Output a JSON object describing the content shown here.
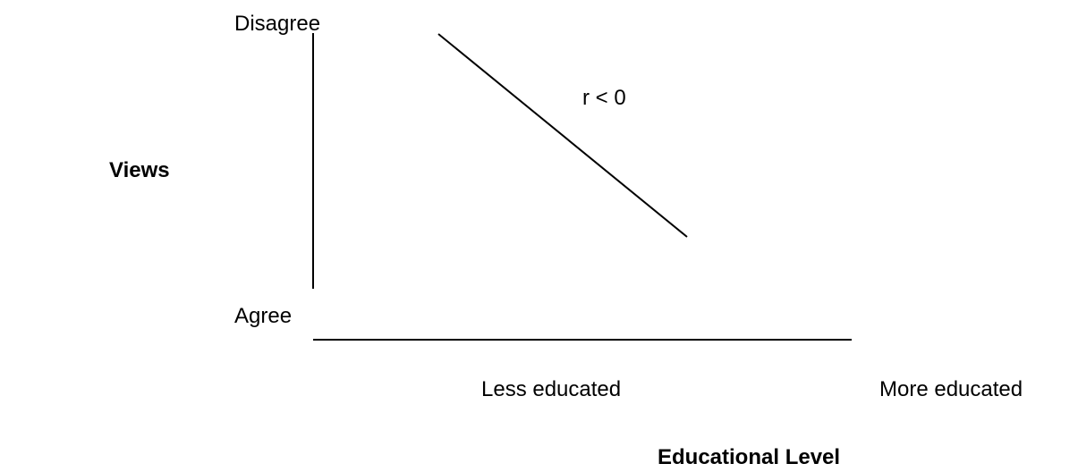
{
  "y_axis": {
    "label": "Views",
    "top": "Disagree",
    "bottom": "Agree"
  },
  "x_axis": {
    "label": "Educational Level",
    "left": "Less educated",
    "right": "More educated"
  },
  "annotation": "r < 0"
}
